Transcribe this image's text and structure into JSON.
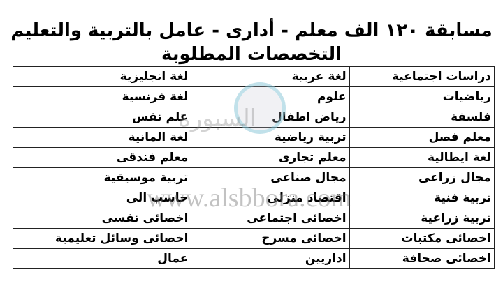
{
  "title": {
    "line1": "مسابقة ١٢٠ الف معلم - أدارى - عامل بالتربية والتعليم",
    "line2": "التخصصات المطلوبة"
  },
  "table": {
    "rows": [
      [
        "دراسات اجتماعية",
        "لغة عربية",
        "لغة انجليزية"
      ],
      [
        "رياضيات",
        "علوم",
        "لغة فرنسية"
      ],
      [
        "فلسفة",
        "رياض اطفال",
        "علم نفس"
      ],
      [
        "معلم فصل",
        "تربية رياضية",
        "لغة المانية"
      ],
      [
        "لغة ايطالية",
        "معلم تجارى",
        "معلم فندقى"
      ],
      [
        "مجال زراعى",
        "مجال صناعى",
        "تربية موسيقية"
      ],
      [
        "تربية فنية",
        "اقتصاد منزلى",
        "حاسب الى"
      ],
      [
        "تربية زراعية",
        "اخصائى اجتماعى",
        "اخصائى نفسى"
      ],
      [
        "اخصائى مكتبات",
        "اخصائى مسرح",
        "اخصائى وسائل تعليمية"
      ],
      [
        "اخصائى صحافة",
        "اداريين",
        "عمال"
      ]
    ]
  },
  "watermark": {
    "url": "www.alsbbora.com",
    "arabic": "السبورة",
    "logo_colors": [
      "#78c8dc",
      "#c8c8d2"
    ]
  }
}
